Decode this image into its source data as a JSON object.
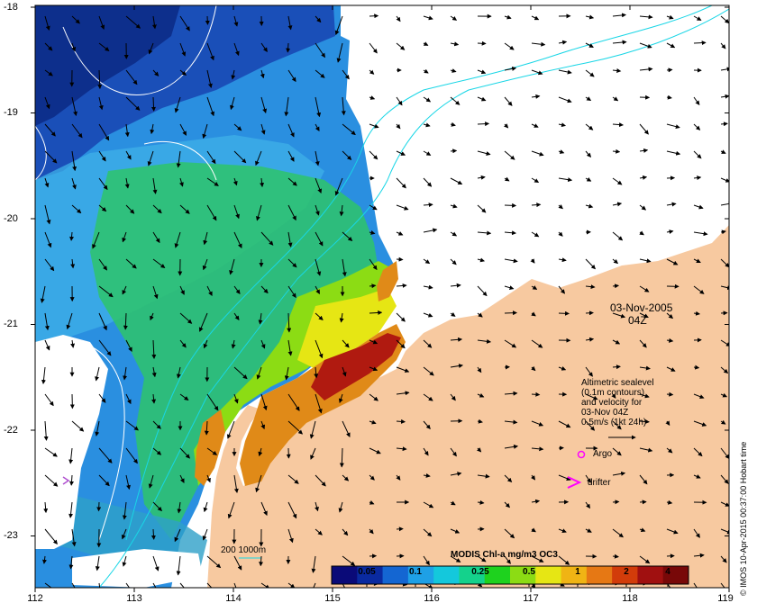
{
  "map": {
    "x_ticks": [
      "112",
      "113",
      "114",
      "115",
      "116",
      "117",
      "118",
      "119"
    ],
    "y_ticks": [
      "-18",
      "-19",
      "-20",
      "-21",
      "-22",
      "-23"
    ],
    "date_line1": "03-Nov-2005",
    "date_line2": "04Z",
    "legend": {
      "lines": [
        "Altimetric sealevel",
        "(0.1m contours)",
        "and velocity for",
        "03-Nov 04Z",
        "0.5m/s (1kt 24h)"
      ],
      "argo_label": "Argo",
      "drifter_label": "drifter"
    },
    "scale_label": "200  1000m",
    "colorbar": {
      "title": "MODIS Chl-a mg/m3 OC3",
      "ticks": [
        "0.05",
        "0.1",
        "0.25",
        "0.5",
        "1",
        "2",
        "4"
      ],
      "colors": [
        "#0a0a78",
        "#0a2aa0",
        "#1466d2",
        "#1ea0e6",
        "#14c8dc",
        "#14d28c",
        "#1ed21e",
        "#8cdc14",
        "#e6e614",
        "#f0b414",
        "#e67814",
        "#d23c0a",
        "#a01010",
        "#780808"
      ]
    },
    "credit": "© IMOS 10-Apr-2015 00:37:00 Hobart time",
    "colors": {
      "land": "#f7c9a0",
      "deep_water": "#1a4fb8",
      "mid_water": "#2a8fe0",
      "shelf_water": "#2ec46a",
      "coastal_high": "#e08a18",
      "contour": "#ffffff",
      "isobath": "#19d6e6",
      "argo": "#ff00ff"
    }
  }
}
